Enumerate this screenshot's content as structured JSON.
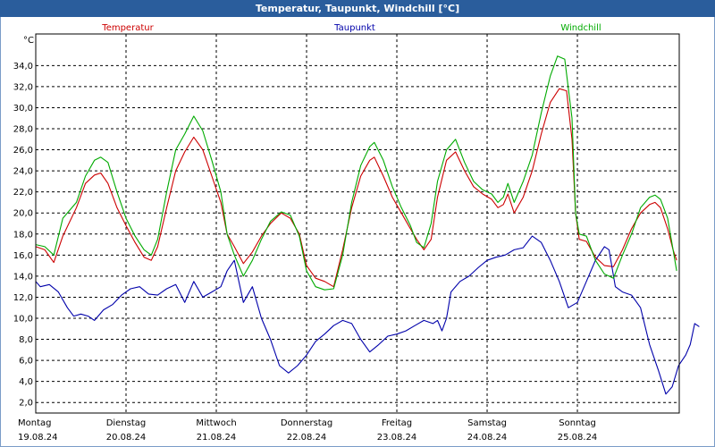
{
  "window": {
    "title": "Temperatur, Taupunkt, Windchill [°C]"
  },
  "colors": {
    "temperatur": "#cc0000",
    "taupunkt": "#0000aa",
    "windchill": "#00aa00",
    "grid": "#000000"
  },
  "chart_data": {
    "type": "line",
    "ylabel": "°C",
    "ylim": [
      1.0,
      37.0
    ],
    "yticks": [
      "2,0",
      "4,0",
      "6,0",
      "8,0",
      "10,0",
      "12,0",
      "14,0",
      "16,0",
      "18,0",
      "20,0",
      "22,0",
      "24,0",
      "26,0",
      "28,0",
      "30,0",
      "32,0",
      "34,0"
    ],
    "ytick_values": [
      2,
      4,
      6,
      8,
      10,
      12,
      14,
      16,
      18,
      20,
      22,
      24,
      26,
      28,
      30,
      32,
      34
    ],
    "xlim": [
      0,
      7
    ],
    "grid": true,
    "legend_placement": "top",
    "x_days": [
      {
        "day": "Montag",
        "date": "19.08.24"
      },
      {
        "day": "Dienstag",
        "date": "20.08.24"
      },
      {
        "day": "Mittwoch",
        "date": "21.08.24"
      },
      {
        "day": "Donnerstag",
        "date": "22.08.24"
      },
      {
        "day": "Freitag",
        "date": "23.08.24"
      },
      {
        "day": "Samstag",
        "date": "24.08.24"
      },
      {
        "day": "Sonntag",
        "date": "25.08.24"
      }
    ],
    "series": [
      {
        "name": "Temperatur",
        "color": "#cc0000",
        "points": [
          [
            0.0,
            16.8
          ],
          [
            0.1,
            16.5
          ],
          [
            0.2,
            15.3
          ],
          [
            0.3,
            17.8
          ],
          [
            0.45,
            20.5
          ],
          [
            0.55,
            22.8
          ],
          [
            0.65,
            23.6
          ],
          [
            0.72,
            23.8
          ],
          [
            0.8,
            22.8
          ],
          [
            0.9,
            20.5
          ],
          [
            1.0,
            18.8
          ],
          [
            1.1,
            17.2
          ],
          [
            1.2,
            15.8
          ],
          [
            1.28,
            15.5
          ],
          [
            1.35,
            16.8
          ],
          [
            1.45,
            20.5
          ],
          [
            1.55,
            24.0
          ],
          [
            1.65,
            25.8
          ],
          [
            1.75,
            27.2
          ],
          [
            1.85,
            26.0
          ],
          [
            1.95,
            23.5
          ],
          [
            2.05,
            21.0
          ],
          [
            2.12,
            18.0
          ],
          [
            2.2,
            16.8
          ],
          [
            2.3,
            15.2
          ],
          [
            2.4,
            16.3
          ],
          [
            2.5,
            17.8
          ],
          [
            2.6,
            19.0
          ],
          [
            2.72,
            20.0
          ],
          [
            2.82,
            19.5
          ],
          [
            2.92,
            18.0
          ],
          [
            3.0,
            15.0
          ],
          [
            3.1,
            13.8
          ],
          [
            3.2,
            13.5
          ],
          [
            3.3,
            13.0
          ],
          [
            3.4,
            16.5
          ],
          [
            3.5,
            20.5
          ],
          [
            3.6,
            23.5
          ],
          [
            3.7,
            25.0
          ],
          [
            3.75,
            25.3
          ],
          [
            3.85,
            23.5
          ],
          [
            3.95,
            21.5
          ],
          [
            4.05,
            20.0
          ],
          [
            4.15,
            18.5
          ],
          [
            4.22,
            17.5
          ],
          [
            4.3,
            16.5
          ],
          [
            4.38,
            17.5
          ],
          [
            4.45,
            21.5
          ],
          [
            4.55,
            25.0
          ],
          [
            4.65,
            25.8
          ],
          [
            4.75,
            24.0
          ],
          [
            4.85,
            22.5
          ],
          [
            4.95,
            21.8
          ],
          [
            5.05,
            21.3
          ],
          [
            5.12,
            20.5
          ],
          [
            5.18,
            20.8
          ],
          [
            5.23,
            21.8
          ],
          [
            5.3,
            20.0
          ],
          [
            5.4,
            21.5
          ],
          [
            5.5,
            24.0
          ],
          [
            5.6,
            27.5
          ],
          [
            5.7,
            30.5
          ],
          [
            5.8,
            31.8
          ],
          [
            5.88,
            31.6
          ],
          [
            5.94,
            27.0
          ],
          [
            5.98,
            20.0
          ],
          [
            6.02,
            17.5
          ],
          [
            6.1,
            17.3
          ],
          [
            6.2,
            15.8
          ],
          [
            6.3,
            15.0
          ],
          [
            6.4,
            14.9
          ],
          [
            6.5,
            16.5
          ],
          [
            6.6,
            18.5
          ],
          [
            6.7,
            20.0
          ],
          [
            6.8,
            20.8
          ],
          [
            6.86,
            21.0
          ],
          [
            6.92,
            20.5
          ],
          [
            7.0,
            18.5
          ],
          [
            7.06,
            16.5
          ],
          [
            7.1,
            15.5
          ]
        ]
      },
      {
        "name": "Taupunkt",
        "color": "#0000aa",
        "points": [
          [
            0.0,
            13.5
          ],
          [
            0.05,
            13.0
          ],
          [
            0.15,
            13.2
          ],
          [
            0.25,
            12.5
          ],
          [
            0.35,
            11.0
          ],
          [
            0.42,
            10.2
          ],
          [
            0.5,
            10.4
          ],
          [
            0.58,
            10.2
          ],
          [
            0.65,
            9.8
          ],
          [
            0.75,
            10.8
          ],
          [
            0.85,
            11.3
          ],
          [
            0.95,
            12.2
          ],
          [
            1.05,
            12.8
          ],
          [
            1.15,
            13.0
          ],
          [
            1.25,
            12.3
          ],
          [
            1.35,
            12.2
          ],
          [
            1.45,
            12.8
          ],
          [
            1.55,
            13.2
          ],
          [
            1.65,
            11.5
          ],
          [
            1.75,
            13.5
          ],
          [
            1.85,
            12.0
          ],
          [
            1.95,
            12.5
          ],
          [
            2.05,
            13.0
          ],
          [
            2.12,
            14.5
          ],
          [
            2.2,
            15.5
          ],
          [
            2.3,
            11.5
          ],
          [
            2.4,
            13.0
          ],
          [
            2.5,
            10.0
          ],
          [
            2.6,
            8.0
          ],
          [
            2.7,
            5.5
          ],
          [
            2.8,
            4.8
          ],
          [
            2.9,
            5.5
          ],
          [
            3.0,
            6.5
          ],
          [
            3.1,
            7.8
          ],
          [
            3.2,
            8.5
          ],
          [
            3.3,
            9.3
          ],
          [
            3.4,
            9.8
          ],
          [
            3.5,
            9.5
          ],
          [
            3.6,
            8.0
          ],
          [
            3.7,
            6.8
          ],
          [
            3.8,
            7.5
          ],
          [
            3.9,
            8.3
          ],
          [
            4.0,
            8.5
          ],
          [
            4.1,
            8.8
          ],
          [
            4.2,
            9.3
          ],
          [
            4.3,
            9.8
          ],
          [
            4.4,
            9.5
          ],
          [
            4.45,
            9.8
          ],
          [
            4.5,
            8.8
          ],
          [
            4.55,
            10.0
          ],
          [
            4.6,
            12.5
          ],
          [
            4.7,
            13.5
          ],
          [
            4.8,
            14.0
          ],
          [
            4.9,
            14.8
          ],
          [
            5.0,
            15.5
          ],
          [
            5.1,
            15.8
          ],
          [
            5.2,
            16.0
          ],
          [
            5.3,
            16.5
          ],
          [
            5.4,
            16.7
          ],
          [
            5.5,
            17.8
          ],
          [
            5.6,
            17.2
          ],
          [
            5.7,
            15.5
          ],
          [
            5.8,
            13.5
          ],
          [
            5.9,
            11.0
          ],
          [
            6.0,
            11.5
          ],
          [
            6.1,
            13.5
          ],
          [
            6.2,
            15.5
          ],
          [
            6.3,
            16.8
          ],
          [
            6.35,
            16.5
          ],
          [
            6.42,
            13.0
          ],
          [
            6.5,
            12.5
          ],
          [
            6.6,
            12.2
          ],
          [
            6.7,
            11.0
          ],
          [
            6.8,
            7.5
          ],
          [
            6.9,
            5.0
          ],
          [
            6.98,
            2.8
          ],
          [
            7.05,
            3.5
          ],
          [
            7.12,
            5.5
          ],
          [
            7.2,
            6.5
          ],
          [
            7.25,
            7.5
          ],
          [
            7.3,
            9.5
          ],
          [
            7.35,
            9.2
          ]
        ]
      },
      {
        "name": "Windchill",
        "color": "#00aa00",
        "points": [
          [
            0.0,
            17.0
          ],
          [
            0.1,
            16.8
          ],
          [
            0.2,
            16.0
          ],
          [
            0.3,
            19.5
          ],
          [
            0.45,
            21.0
          ],
          [
            0.55,
            23.5
          ],
          [
            0.65,
            25.0
          ],
          [
            0.72,
            25.3
          ],
          [
            0.8,
            24.8
          ],
          [
            0.9,
            22.0
          ],
          [
            1.0,
            19.5
          ],
          [
            1.1,
            17.8
          ],
          [
            1.2,
            16.5
          ],
          [
            1.28,
            16.0
          ],
          [
            1.35,
            17.5
          ],
          [
            1.45,
            22.0
          ],
          [
            1.55,
            26.0
          ],
          [
            1.65,
            27.5
          ],
          [
            1.75,
            29.2
          ],
          [
            1.85,
            27.8
          ],
          [
            1.95,
            25.0
          ],
          [
            2.05,
            22.0
          ],
          [
            2.12,
            18.0
          ],
          [
            2.2,
            16.0
          ],
          [
            2.3,
            14.0
          ],
          [
            2.4,
            15.5
          ],
          [
            2.5,
            17.5
          ],
          [
            2.6,
            19.2
          ],
          [
            2.72,
            20.1
          ],
          [
            2.82,
            19.8
          ],
          [
            2.92,
            17.8
          ],
          [
            3.0,
            14.5
          ],
          [
            3.1,
            13.0
          ],
          [
            3.2,
            12.7
          ],
          [
            3.3,
            12.8
          ],
          [
            3.4,
            16.0
          ],
          [
            3.5,
            21.0
          ],
          [
            3.6,
            24.5
          ],
          [
            3.7,
            26.3
          ],
          [
            3.75,
            26.7
          ],
          [
            3.85,
            25.0
          ],
          [
            3.95,
            22.5
          ],
          [
            4.05,
            20.5
          ],
          [
            4.15,
            18.8
          ],
          [
            4.22,
            17.2
          ],
          [
            4.3,
            16.7
          ],
          [
            4.38,
            19.0
          ],
          [
            4.45,
            23.0
          ],
          [
            4.55,
            26.0
          ],
          [
            4.65,
            27.0
          ],
          [
            4.75,
            24.8
          ],
          [
            4.85,
            23.0
          ],
          [
            4.95,
            22.2
          ],
          [
            5.05,
            21.8
          ],
          [
            5.12,
            21.0
          ],
          [
            5.18,
            21.5
          ],
          [
            5.23,
            22.8
          ],
          [
            5.3,
            21.0
          ],
          [
            5.4,
            23.0
          ],
          [
            5.5,
            25.5
          ],
          [
            5.6,
            29.5
          ],
          [
            5.7,
            33.0
          ],
          [
            5.78,
            34.9
          ],
          [
            5.86,
            34.6
          ],
          [
            5.94,
            29.0
          ],
          [
            5.98,
            20.0
          ],
          [
            6.02,
            18.0
          ],
          [
            6.1,
            17.8
          ],
          [
            6.2,
            15.5
          ],
          [
            6.3,
            14.2
          ],
          [
            6.4,
            13.8
          ],
          [
            6.5,
            16.0
          ],
          [
            6.6,
            18.0
          ],
          [
            6.7,
            20.5
          ],
          [
            6.8,
            21.5
          ],
          [
            6.86,
            21.7
          ],
          [
            6.92,
            21.3
          ],
          [
            7.0,
            19.5
          ],
          [
            7.06,
            16.5
          ],
          [
            7.1,
            14.5
          ]
        ]
      }
    ]
  }
}
